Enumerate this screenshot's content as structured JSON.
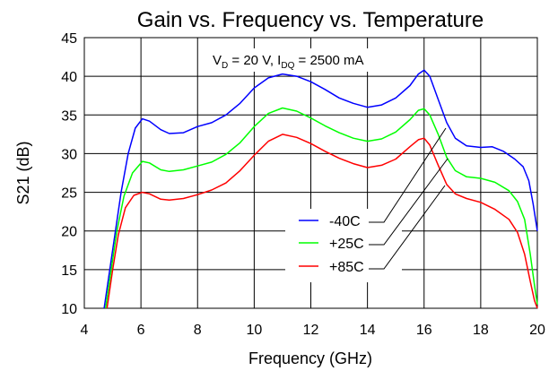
{
  "chart_data": {
    "type": "line",
    "title": "Gain vs. Frequency vs. Temperature",
    "xlabel": "Frequency (GHz)",
    "ylabel": "S21 (dB)",
    "xlim": [
      4,
      20
    ],
    "ylim": [
      10,
      45
    ],
    "xticks": [
      "4",
      "6",
      "8",
      "10",
      "12",
      "14",
      "16",
      "18",
      "20"
    ],
    "yticks": [
      "10",
      "15",
      "20",
      "25",
      "30",
      "35",
      "40",
      "45"
    ],
    "grid": true,
    "annotation": {
      "v_main": "V",
      "v_sub": "D",
      "v_value": " = 20 V, ",
      "i_main": "I",
      "i_sub": "DQ",
      "i_value": " = 2500 mA"
    },
    "legend_position": "center-right",
    "series": [
      {
        "name": "-40C",
        "color": "#0000ff",
        "points": [
          [
            4.7,
            10
          ],
          [
            4.9,
            15
          ],
          [
            5.1,
            20
          ],
          [
            5.3,
            25
          ],
          [
            5.55,
            30
          ],
          [
            5.8,
            33.3
          ],
          [
            6.05,
            34.5
          ],
          [
            6.3,
            34.2
          ],
          [
            6.7,
            33.1
          ],
          [
            7.0,
            32.6
          ],
          [
            7.5,
            32.7
          ],
          [
            8.0,
            33.5
          ],
          [
            8.5,
            34.0
          ],
          [
            9.0,
            35.0
          ],
          [
            9.5,
            36.5
          ],
          [
            10.0,
            38.5
          ],
          [
            10.5,
            39.8
          ],
          [
            11.0,
            40.3
          ],
          [
            11.5,
            40.0
          ],
          [
            12.0,
            39.3
          ],
          [
            12.5,
            38.3
          ],
          [
            13.0,
            37.2
          ],
          [
            13.5,
            36.5
          ],
          [
            14.0,
            36.0
          ],
          [
            14.5,
            36.3
          ],
          [
            15.0,
            37.2
          ],
          [
            15.5,
            38.8
          ],
          [
            15.8,
            40.3
          ],
          [
            16.0,
            40.8
          ],
          [
            16.2,
            40.0
          ],
          [
            16.5,
            37.0
          ],
          [
            16.8,
            34.0
          ],
          [
            17.1,
            32.0
          ],
          [
            17.5,
            31.0
          ],
          [
            18.0,
            30.8
          ],
          [
            18.4,
            30.9
          ],
          [
            18.8,
            30.3
          ],
          [
            19.2,
            29.3
          ],
          [
            19.5,
            28.3
          ],
          [
            19.7,
            26.5
          ],
          [
            19.85,
            23.5
          ],
          [
            20.0,
            20.0
          ]
        ]
      },
      {
        "name": "+25C",
        "color": "#00ff00",
        "points": [
          [
            4.75,
            10
          ],
          [
            4.95,
            15
          ],
          [
            5.15,
            20
          ],
          [
            5.4,
            24.5
          ],
          [
            5.7,
            27.5
          ],
          [
            6.05,
            29.0
          ],
          [
            6.3,
            28.8
          ],
          [
            6.7,
            27.9
          ],
          [
            7.0,
            27.7
          ],
          [
            7.5,
            27.9
          ],
          [
            8.0,
            28.4
          ],
          [
            8.5,
            28.9
          ],
          [
            9.0,
            29.9
          ],
          [
            9.5,
            31.4
          ],
          [
            10.0,
            33.5
          ],
          [
            10.5,
            35.2
          ],
          [
            11.0,
            35.9
          ],
          [
            11.5,
            35.5
          ],
          [
            12.0,
            34.6
          ],
          [
            12.5,
            33.6
          ],
          [
            13.0,
            32.7
          ],
          [
            13.5,
            32.0
          ],
          [
            14.0,
            31.6
          ],
          [
            14.5,
            31.9
          ],
          [
            15.0,
            32.8
          ],
          [
            15.5,
            34.4
          ],
          [
            15.8,
            35.6
          ],
          [
            16.0,
            35.8
          ],
          [
            16.2,
            35.0
          ],
          [
            16.5,
            32.5
          ],
          [
            16.8,
            29.5
          ],
          [
            17.1,
            27.8
          ],
          [
            17.5,
            27.0
          ],
          [
            18.0,
            26.8
          ],
          [
            18.5,
            26.3
          ],
          [
            19.0,
            25.2
          ],
          [
            19.3,
            23.8
          ],
          [
            19.55,
            21.5
          ],
          [
            19.75,
            17.0
          ],
          [
            19.9,
            13.0
          ],
          [
            20.0,
            10.5
          ]
        ]
      },
      {
        "name": "+85C",
        "color": "#ff0000",
        "points": [
          [
            4.8,
            10
          ],
          [
            5.0,
            15
          ],
          [
            5.2,
            19.5
          ],
          [
            5.45,
            23.0
          ],
          [
            5.75,
            24.6
          ],
          [
            6.05,
            25.0
          ],
          [
            6.3,
            24.8
          ],
          [
            6.7,
            24.1
          ],
          [
            7.0,
            24.0
          ],
          [
            7.5,
            24.2
          ],
          [
            8.0,
            24.7
          ],
          [
            8.5,
            25.3
          ],
          [
            9.0,
            26.2
          ],
          [
            9.5,
            27.8
          ],
          [
            10.0,
            29.8
          ],
          [
            10.5,
            31.6
          ],
          [
            11.0,
            32.5
          ],
          [
            11.5,
            32.1
          ],
          [
            12.0,
            31.3
          ],
          [
            12.5,
            30.3
          ],
          [
            13.0,
            29.4
          ],
          [
            13.5,
            28.7
          ],
          [
            14.0,
            28.2
          ],
          [
            14.5,
            28.5
          ],
          [
            15.0,
            29.3
          ],
          [
            15.5,
            30.9
          ],
          [
            15.8,
            31.8
          ],
          [
            16.0,
            32.0
          ],
          [
            16.2,
            31.1
          ],
          [
            16.5,
            28.5
          ],
          [
            16.8,
            26.0
          ],
          [
            17.1,
            24.8
          ],
          [
            17.5,
            24.2
          ],
          [
            18.0,
            23.7
          ],
          [
            18.5,
            22.8
          ],
          [
            19.0,
            21.5
          ],
          [
            19.3,
            19.8
          ],
          [
            19.55,
            17.0
          ],
          [
            19.75,
            13.5
          ],
          [
            19.9,
            11.0
          ],
          [
            20.0,
            10.0
          ]
        ]
      }
    ]
  }
}
